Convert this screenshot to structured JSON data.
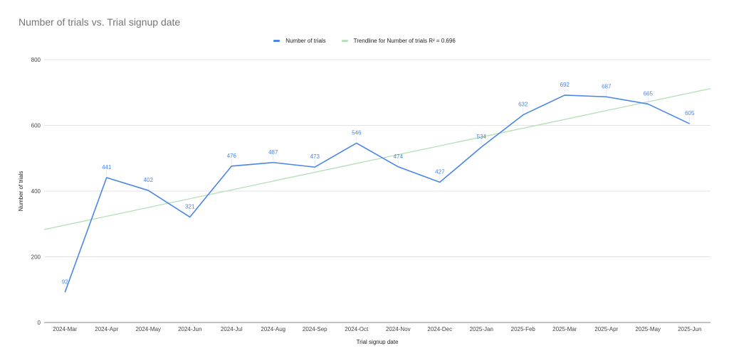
{
  "chart_data": {
    "type": "line",
    "title": "Number of trials vs. Trial signup date",
    "xlabel": "Trial signup date",
    "ylabel": "Number of trials",
    "categories": [
      "2024-Mar",
      "2024-Apr",
      "2024-May",
      "2024-Jun",
      "2024-Jul",
      "2024-Aug",
      "2024-Sep",
      "2024-Oct",
      "2024-Nov",
      "2024-Dec",
      "2025-Jan",
      "2025-Feb",
      "2025-Mar",
      "2025-Apr",
      "2025-May",
      "2025-Jun"
    ],
    "series": [
      {
        "name": "Number of trials",
        "color": "#4a86e8",
        "values": [
          92,
          441,
          402,
          321,
          476,
          487,
          473,
          546,
          474,
          427,
          534,
          632,
          692,
          687,
          665,
          605
        ]
      }
    ],
    "trendline": {
      "name": "Trendline for Number of trials R² = 0.696",
      "type": "linear",
      "r_squared": 0.696,
      "color": "#b7e1b9",
      "start_value": 283,
      "end_value": 712
    },
    "ylim": [
      0,
      800
    ],
    "yticks": [
      0,
      200,
      400,
      600,
      800
    ],
    "grid": true,
    "legend_position": "top",
    "data_labels": true
  },
  "legend": {
    "series_label": "Number of trials",
    "trend_label": "Trendline for Number of trials R² = 0.696"
  }
}
